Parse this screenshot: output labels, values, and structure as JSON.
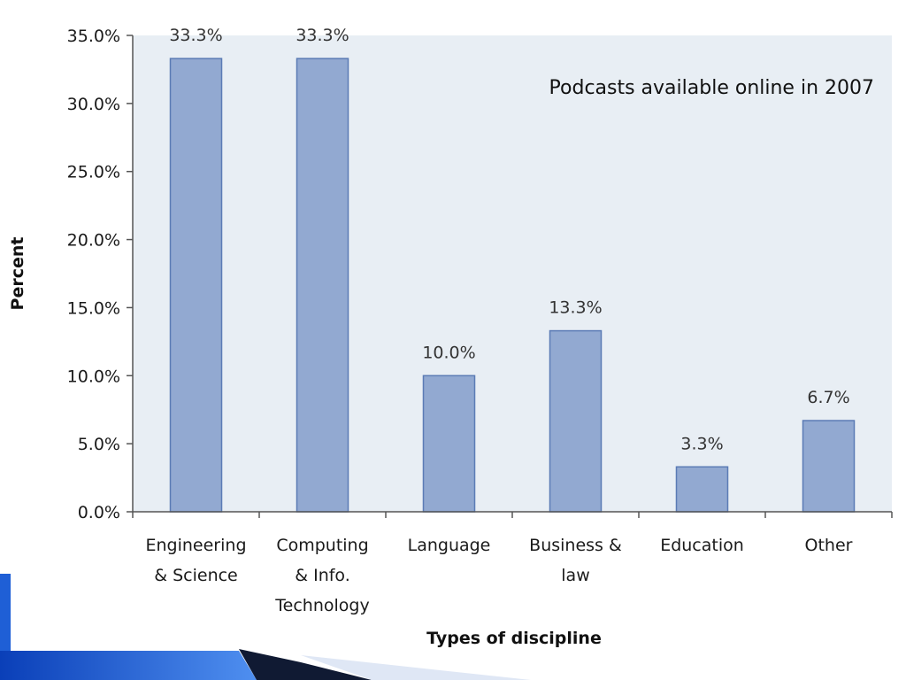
{
  "chart_data": {
    "type": "bar",
    "title": "Podcasts available online in 2007",
    "xlabel": "Types of discipline",
    "ylabel": "Percent",
    "categories": [
      [
        "Engineering",
        "& Science"
      ],
      [
        "Computing",
        "& Info.",
        "Technology"
      ],
      [
        "Language"
      ],
      [
        "Business &",
        "law"
      ],
      [
        "Education"
      ],
      [
        "Other"
      ]
    ],
    "values": [
      33.3,
      33.3,
      10.0,
      13.3,
      3.3,
      6.7
    ],
    "data_labels": [
      "33.3%",
      "33.3%",
      "10.0%",
      "13.3%",
      "3.3%",
      "6.7%"
    ],
    "ylim": [
      0,
      35
    ],
    "yticks": [
      0,
      5,
      10,
      15,
      20,
      25,
      30,
      35
    ],
    "ytick_labels": [
      "0.0%",
      "5.0%",
      "10.0%",
      "15.0%",
      "20.0%",
      "25.0%",
      "30.0%",
      "35.0%"
    ],
    "grid": false,
    "legend": "none",
    "colors": {
      "bar_fill": "#92a9d1",
      "bar_stroke": "#5b7bb5",
      "plot_background": "#e8eef4",
      "axis": "#555555",
      "decor_blue": "#1f5fd6",
      "decor_dark": "#101a33"
    }
  }
}
